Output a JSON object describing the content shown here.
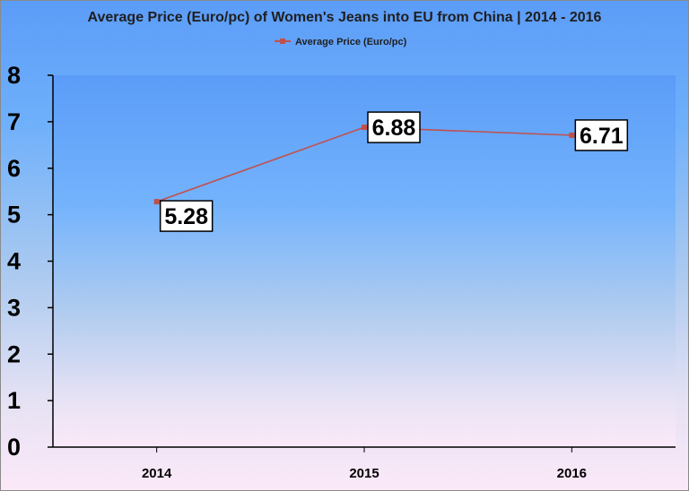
{
  "chart_data": {
    "type": "line",
    "title": "Average Price (Euro/pc) of Women's Jeans into EU from China | 2014 - 2016",
    "categories": [
      "2014",
      "2015",
      "2016"
    ],
    "series": [
      {
        "name": "Average Price (Euro/pc)",
        "values": [
          5.28,
          6.88,
          6.71
        ],
        "color": "#c0504d"
      }
    ],
    "data_labels": [
      "5.28",
      "6.88",
      "6.71"
    ],
    "y_ticks": [
      "0",
      "1",
      "2",
      "3",
      "4",
      "5",
      "6",
      "7",
      "8"
    ],
    "ylim": [
      0,
      8
    ],
    "xlabel": "",
    "ylabel": "",
    "legend_position": "top",
    "grid": false,
    "plot_area_color": "#5b9cf8",
    "label_box_color": "#ffffff"
  }
}
